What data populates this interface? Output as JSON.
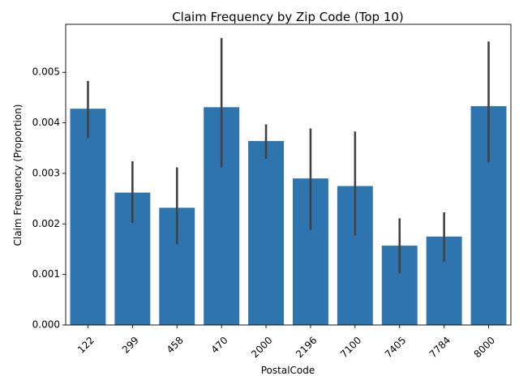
{
  "chart_data": {
    "type": "bar",
    "title": "Claim Frequency by Zip Code (Top 10)",
    "xlabel": "PostalCode",
    "ylabel": "Claim Frequency (Proportion)",
    "categories": [
      "122",
      "299",
      "458",
      "470",
      "2000",
      "2196",
      "7100",
      "7405",
      "7784",
      "8000"
    ],
    "values": [
      0.00428,
      0.00262,
      0.00232,
      0.00431,
      0.00364,
      0.0029,
      0.00275,
      0.00157,
      0.00175,
      0.00433
    ],
    "ci_low": [
      0.0037,
      0.00202,
      0.0016,
      0.00312,
      0.00329,
      0.00188,
      0.00177,
      0.00102,
      0.00125,
      0.00322
    ],
    "ci_high": [
      0.00483,
      0.00324,
      0.00312,
      0.00568,
      0.00397,
      0.00389,
      0.00383,
      0.00211,
      0.00223,
      0.00561
    ],
    "ylim": [
      0,
      0.00595
    ],
    "yticks": [
      0.0,
      0.001,
      0.002,
      0.003,
      0.004,
      0.005
    ],
    "ytick_labels": [
      "0.000",
      "0.001",
      "0.002",
      "0.003",
      "0.004",
      "0.005"
    ],
    "grid": false,
    "colors": {
      "bar": "#2e75b0",
      "errbar": "#424242"
    }
  }
}
